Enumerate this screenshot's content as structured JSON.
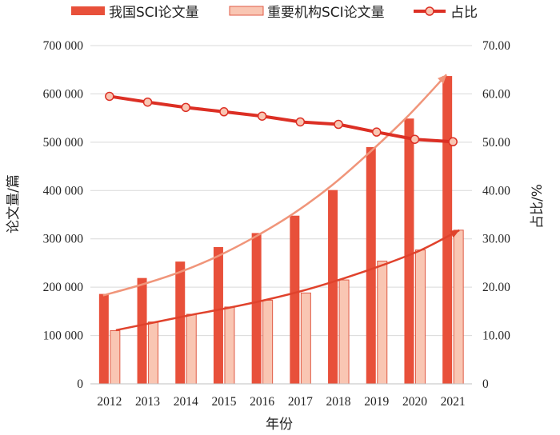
{
  "chart_data": {
    "type": "bar+line",
    "categories": [
      "2012",
      "2013",
      "2014",
      "2015",
      "2016",
      "2017",
      "2018",
      "2019",
      "2020",
      "2021"
    ],
    "x_axis_label": "年份",
    "y_left_label": "论文量/篇",
    "y_right_label": "占比/%",
    "y_left_ticks": [
      "0",
      "100 000",
      "200 000",
      "300 000",
      "400 000",
      "500 000",
      "600 000",
      "700 000"
    ],
    "y_right_ticks": [
      "0",
      "10.00",
      "20.00",
      "30.00",
      "40.00",
      "50.00",
      "60.00",
      "70.00"
    ],
    "y_left_range": [
      0,
      700000
    ],
    "y_right_range": [
      0,
      70
    ],
    "grid": true,
    "legend_position": "top",
    "series": [
      {
        "name": "我国SCI论文量",
        "type": "bar",
        "axis": "left",
        "color": "#e8503a",
        "values": [
          186000,
          219000,
          253000,
          283000,
          312000,
          348000,
          401000,
          490000,
          549000,
          637000
        ]
      },
      {
        "name": "重要机构SCI论文量",
        "type": "bar",
        "axis": "left",
        "color": "#f9c6b3",
        "values": [
          110000,
          128000,
          144000,
          159000,
          173000,
          188000,
          215000,
          254000,
          277000,
          318000
        ]
      },
      {
        "name": "占比",
        "type": "line",
        "axis": "right",
        "color": "#dc2f24",
        "values": [
          59.5,
          58.3,
          57.2,
          56.3,
          55.4,
          54.2,
          53.7,
          52.1,
          50.6,
          50.1
        ]
      }
    ],
    "trendlines": [
      {
        "color": "#f0957a",
        "values": [
          183000,
          205000,
          231000,
          264000,
          305000,
          353000,
          411000,
          480000,
          555000,
          640000
        ]
      },
      {
        "color": "#e0422c",
        "values": [
          111000,
          127000,
          143000,
          158000,
          175000,
          195000,
          219000,
          246000,
          277000,
          318000
        ]
      }
    ]
  }
}
